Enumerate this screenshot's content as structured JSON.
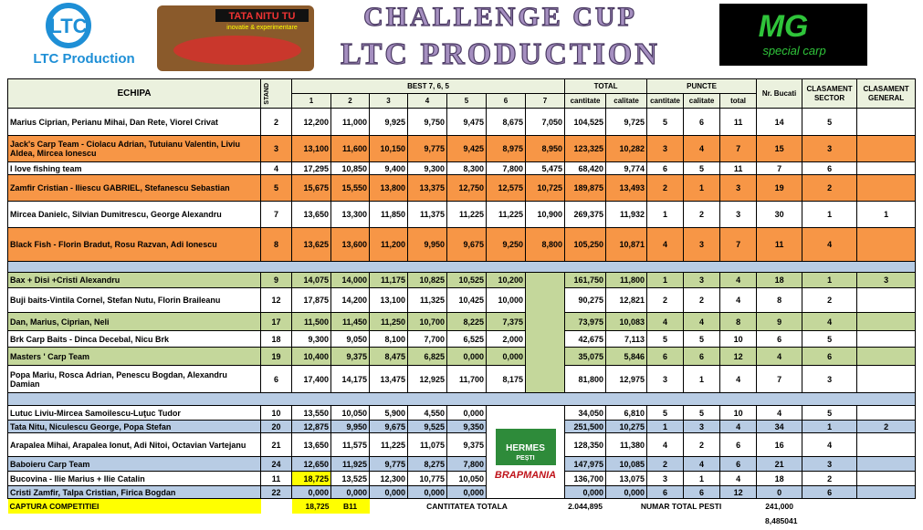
{
  "header": {
    "brand": "LTC Production",
    "brand_mark": "LTC",
    "logo_text": "TATA NITU TU",
    "logo_sub": "inovatie & experimentare",
    "title_line1": "CHALLENGE CUP",
    "title_line2": "LTC PRODUCTION",
    "sponsor": "MG",
    "sponsor_sub": "special carp"
  },
  "table": {
    "columns": {
      "team": "ECHIPA",
      "stand": "STAND",
      "best": "BEST 7, 6, 5",
      "best_cols": [
        "1",
        "2",
        "3",
        "4",
        "5",
        "6",
        "7"
      ],
      "total": "TOTAL",
      "total_cols": [
        "cantitate",
        "calitate"
      ],
      "points": "PUNCTE",
      "points_cols": [
        "cantitate",
        "calitate",
        "total"
      ],
      "count": "Nr. Bucati",
      "sector": "CLASAMENT SECTOR",
      "general": "CLASAMENT GENERAL"
    },
    "groups": [
      {
        "color": "#f79646",
        "rows": [
          {
            "team": "Marius Ciprian, Perianu Mihai, Dan Rete, Viorel Crivat",
            "stand": "2",
            "best": [
              "12,200",
              "11,000",
              "9,925",
              "9,750",
              "9,475",
              "8,675",
              "7,050"
            ],
            "total": [
              "104,525",
              "9,725"
            ],
            "points": [
              "5",
              "6",
              "11"
            ],
            "count": "14",
            "sector": "5"
          },
          {
            "highlight": true,
            "team": "Jack's Carp Team - Ciolacu Adrian, Tutuianu Valentin, Liviu Aldea, Mircea Ionescu",
            "stand": "3",
            "best": [
              "13,100",
              "11,600",
              "10,150",
              "9,775",
              "9,425",
              "8,975",
              "8,950"
            ],
            "total": [
              "123,325",
              "10,282"
            ],
            "points": [
              "3",
              "4",
              "7"
            ],
            "count": "15",
            "sector": "3"
          },
          {
            "team": "I love fishing team",
            "stand": "4",
            "best": [
              "17,295",
              "10,850",
              "9,400",
              "9,300",
              "8,300",
              "7,800",
              "5,475"
            ],
            "total": [
              "68,420",
              "9,774"
            ],
            "points": [
              "6",
              "5",
              "11"
            ],
            "count": "7",
            "sector": "6"
          },
          {
            "highlight": true,
            "team": "Zamfir Cristian - Iliescu GABRIEL, Stefanescu Sebastian",
            "stand": "5",
            "best": [
              "15,675",
              "15,550",
              "13,800",
              "13,375",
              "12,750",
              "12,575",
              "10,725"
            ],
            "total": [
              "189,875",
              "13,493"
            ],
            "points": [
              "2",
              "1",
              "3"
            ],
            "count": "19",
            "sector": "2"
          },
          {
            "team": "Mircea Danielc, Silvian Dumitrescu, George Alexandru",
            "stand": "7",
            "best": [
              "13,650",
              "13,300",
              "11,850",
              "11,375",
              "11,225",
              "11,225",
              "10,900"
            ],
            "total": [
              "269,375",
              "11,932"
            ],
            "points": [
              "1",
              "2",
              "3"
            ],
            "count": "30",
            "sector": "1",
            "general": "1"
          },
          {
            "highlight": true,
            "team": "Black Fish - Florin Bradut, Rosu Razvan, Adi Ionescu",
            "stand": "8",
            "best": [
              "13,625",
              "13,600",
              "11,200",
              "9,950",
              "9,675",
              "9,250",
              "8,800"
            ],
            "total": [
              "105,250",
              "10,871"
            ],
            "points": [
              "4",
              "3",
              "7"
            ],
            "count": "11",
            "sector": "4"
          }
        ]
      },
      {
        "color": "#c4d79b",
        "filler_color": "#c4d79b",
        "rows": [
          {
            "highlight": true,
            "team": "Bax + Disi +Cristi Alexandru",
            "stand": "9",
            "best": [
              "14,075",
              "14,000",
              "11,175",
              "10,825",
              "10,525",
              "10,200"
            ],
            "total": [
              "161,750",
              "11,800"
            ],
            "points": [
              "1",
              "3",
              "4"
            ],
            "count": "18",
            "sector": "1",
            "general": "3"
          },
          {
            "team": "Buji baits-Vintila Cornel, Stefan Nutu, Florin Braileanu",
            "stand": "12",
            "best": [
              "17,875",
              "14,200",
              "13,100",
              "11,325",
              "10,425",
              "10,000"
            ],
            "total": [
              "90,275",
              "12,821"
            ],
            "points": [
              "2",
              "2",
              "4"
            ],
            "count": "8",
            "sector": "2"
          },
          {
            "highlight": true,
            "team": "Dan, Marius, Ciprian, Neli",
            "stand": "17",
            "best": [
              "11,500",
              "11,450",
              "11,250",
              "10,700",
              "8,225",
              "7,375"
            ],
            "total": [
              "73,975",
              "10,083"
            ],
            "points": [
              "4",
              "4",
              "8"
            ],
            "count": "9",
            "sector": "4"
          },
          {
            "team": "Brk Carp Baits - Dinca Decebal, Nicu Brk",
            "stand": "18",
            "best": [
              "9,300",
              "9,050",
              "8,100",
              "7,700",
              "6,525",
              "2,000"
            ],
            "total": [
              "42,675",
              "7,113"
            ],
            "points": [
              "5",
              "5",
              "10"
            ],
            "count": "6",
            "sector": "5"
          },
          {
            "highlight": true,
            "team": "Masters ' Carp Team",
            "stand": "19",
            "best": [
              "10,400",
              "9,375",
              "8,475",
              "6,825",
              "0,000",
              "0,000"
            ],
            "total": [
              "35,075",
              "5,846"
            ],
            "points": [
              "6",
              "6",
              "12"
            ],
            "count": "4",
            "sector": "6"
          },
          {
            "team": "Popa Mariu, Rosca Adrian, Penescu Bogdan, Alexandru Damian",
            "stand": "6",
            "best": [
              "17,400",
              "14,175",
              "13,475",
              "12,925",
              "11,700",
              "8,175"
            ],
            "total": [
              "81,800",
              "12,975"
            ],
            "points": [
              "3",
              "1",
              "4"
            ],
            "count": "7",
            "sector": "3"
          }
        ]
      },
      {
        "color": "#b8cce4",
        "filler_logos": {
          "hermes": "HERMES",
          "hermes_sub": "PEȘTI",
          "brap": "BRAP",
          "brap_sub": "MANIA"
        },
        "rows": [
          {
            "team": "Lutuc Liviu-Mircea Samoilescu-Luţuc Tudor",
            "stand": "10",
            "best": [
              "13,550",
              "10,050",
              "5,900",
              "4,550",
              "0,000"
            ],
            "total": [
              "34,050",
              "6,810"
            ],
            "points": [
              "5",
              "5",
              "10"
            ],
            "count": "4",
            "sector": "5"
          },
          {
            "highlight": true,
            "team": "Tata Nitu, Niculescu George, Popa Stefan",
            "stand": "20",
            "best": [
              "12,875",
              "9,950",
              "9,675",
              "9,525",
              "9,350"
            ],
            "total": [
              "251,500",
              "10,275"
            ],
            "points": [
              "1",
              "3",
              "4"
            ],
            "count": "34",
            "sector": "1",
            "general": "2"
          },
          {
            "team": "Arapalea Mihai, Arapalea Ionut, Adi Nitoi, Octavian Vartejanu",
            "stand": "21",
            "best": [
              "13,650",
              "11,575",
              "11,225",
              "11,075",
              "9,375"
            ],
            "total": [
              "128,350",
              "11,380"
            ],
            "points": [
              "4",
              "2",
              "6"
            ],
            "count": "16",
            "sector": "4"
          },
          {
            "highlight": true,
            "team": "Baboieru Carp Team",
            "stand": "24",
            "best": [
              "12,650",
              "11,925",
              "9,775",
              "8,275",
              "7,800"
            ],
            "total": [
              "147,975",
              "10,085"
            ],
            "points": [
              "2",
              "4",
              "6"
            ],
            "count": "21",
            "sector": "3"
          },
          {
            "team": "Bucovina - Ilie Marius + Ilie Catalin",
            "stand": "11",
            "best": [
              "18,725",
              "13,525",
              "12,300",
              "10,775",
              "10,050"
            ],
            "total": [
              "136,700",
              "13,075"
            ],
            "points": [
              "3",
              "1",
              "4"
            ],
            "count": "18",
            "sector": "2"
          },
          {
            "highlight": true,
            "team": "Cristi Zamfir, Talpa Cristian, Firica Bogdan",
            "stand": "22",
            "best": [
              "0,000",
              "0,000",
              "0,000",
              "0,000",
              "0,000"
            ],
            "total": [
              "0,000",
              "0,000"
            ],
            "points": [
              "6",
              "6",
              "12"
            ],
            "count": "0",
            "sector": "6"
          }
        ]
      }
    ]
  },
  "footer": {
    "label": "CAPTURA COMPETITIEI",
    "max_catch": "18,725",
    "stand_ref": "B11",
    "total_label": "CANTITATEA TOTALA",
    "total_value": "2.044,895",
    "fish_label": "NUMAR TOTAL PESTI",
    "fish_value": "241,000",
    "extra": "8,485041"
  }
}
